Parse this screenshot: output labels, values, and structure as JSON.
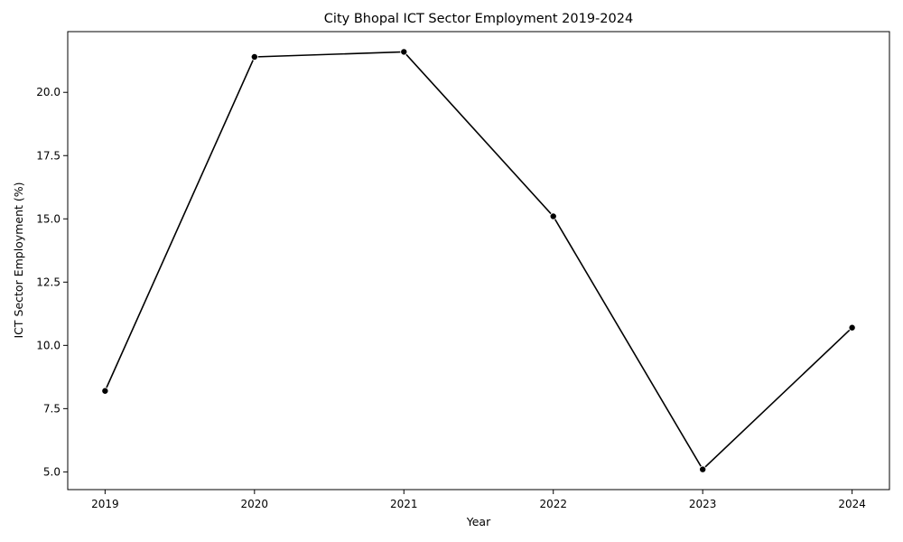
{
  "chart_data": {
    "type": "line",
    "title": "City Bhopal ICT Sector Employment 2019-2024",
    "xlabel": "Year",
    "ylabel": "ICT Sector Employment (%)",
    "x": [
      2019,
      2020,
      2021,
      2022,
      2023,
      2024
    ],
    "series": [
      {
        "values": [
          8.2,
          21.4,
          21.6,
          15.1,
          5.1,
          10.7
        ]
      }
    ],
    "xlim": [
      2018.75,
      2024.25
    ],
    "ylim": [
      4.3,
      22.4
    ],
    "xticks": [
      "2019",
      "2020",
      "2021",
      "2022",
      "2023",
      "2024"
    ],
    "yticks": [
      "5.0",
      "7.5",
      "10.0",
      "12.5",
      "15.0",
      "17.5",
      "20.0"
    ],
    "grid": false,
    "line_color": "#000000",
    "marker_color": "#000000"
  }
}
